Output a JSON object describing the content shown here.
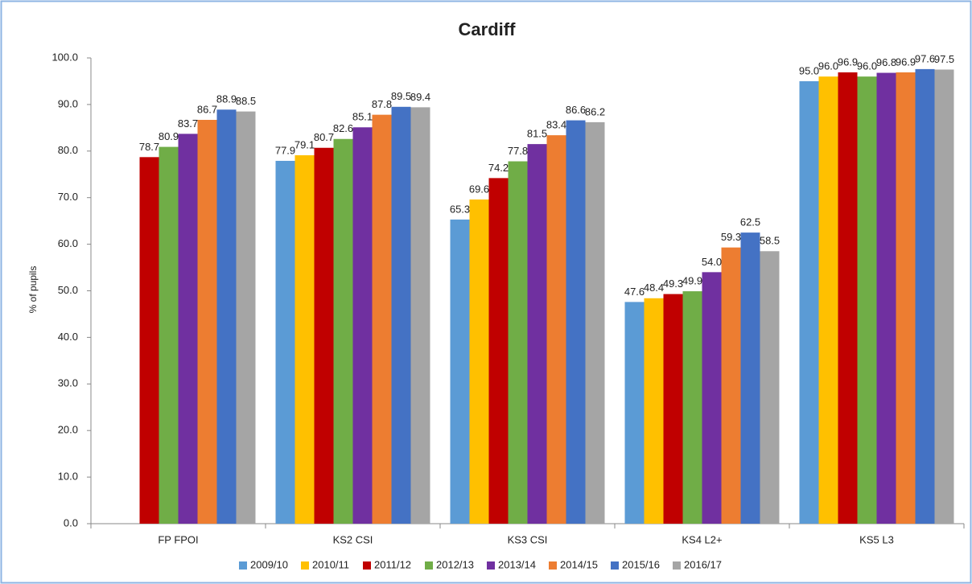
{
  "chart_data": {
    "type": "bar",
    "title": "Cardiff",
    "y_label": "% of pupils",
    "categories": [
      "FP FPOI",
      "KS2 CSI",
      "KS3 CSI",
      "KS4 L2+",
      "KS5 L3"
    ],
    "ylim": [
      0,
      100
    ],
    "yticks": [
      {
        "value": 0,
        "label": "0.0"
      },
      {
        "value": 10,
        "label": "10.0"
      },
      {
        "value": 20,
        "label": "20.0"
      },
      {
        "value": 30,
        "label": "30.0"
      },
      {
        "value": 40,
        "label": "40.0"
      },
      {
        "value": 50,
        "label": "50.0"
      },
      {
        "value": 60,
        "label": "60.0"
      },
      {
        "value": 70,
        "label": "70.0"
      },
      {
        "value": 80,
        "label": "80.0"
      },
      {
        "value": 90,
        "label": "90.0"
      },
      {
        "value": 100,
        "label": "100.0"
      }
    ],
    "grid": false,
    "legend": "bottom",
    "series": [
      {
        "name": "2009/10",
        "color": "#5b9bd5",
        "values": [
          null,
          77.9,
          65.3,
          47.6,
          95.0
        ],
        "value_labels": [
          null,
          "77.9",
          "65.3",
          "47.6",
          "95.0"
        ]
      },
      {
        "name": "2010/11",
        "color": "#ffc000",
        "values": [
          null,
          79.1,
          69.6,
          48.4,
          96.0
        ],
        "value_labels": [
          null,
          "79.1",
          "69.6",
          "48.4",
          "96.0"
        ]
      },
      {
        "name": "2011/12",
        "color": "#c00000",
        "values": [
          78.7,
          80.7,
          74.2,
          49.3,
          96.9
        ],
        "value_labels": [
          "78.7",
          "80.7",
          "74.2",
          "49.3",
          "96.9"
        ]
      },
      {
        "name": "2012/13",
        "color": "#70ad47",
        "values": [
          80.9,
          82.6,
          77.8,
          49.9,
          96.0
        ],
        "value_labels": [
          "80.9",
          "82.6",
          "77.8",
          "49.9",
          "96.0"
        ]
      },
      {
        "name": "2013/14",
        "color": "#7030a0",
        "values": [
          83.7,
          85.1,
          81.5,
          54.0,
          96.8
        ],
        "value_labels": [
          "83.7",
          "85.1",
          "81.5",
          "54.0",
          "96.8"
        ]
      },
      {
        "name": "2014/15",
        "color": "#ed7d31",
        "values": [
          86.7,
          87.8,
          83.4,
          59.3,
          96.9
        ],
        "value_labels": [
          "86.7",
          "87.8",
          "83.4",
          "59.3",
          "96.9"
        ]
      },
      {
        "name": "2015/16",
        "color": "#4472c4",
        "values": [
          88.9,
          89.5,
          86.6,
          62.5,
          97.6
        ],
        "value_labels": [
          "88.9",
          "89.5",
          "86.6",
          "62.5",
          "97.6"
        ]
      },
      {
        "name": "2016/17",
        "color": "#a5a5a5",
        "values": [
          88.5,
          89.4,
          86.2,
          58.5,
          97.5
        ],
        "value_labels": [
          "88.5",
          "89.4",
          "86.2",
          "58.5",
          "97.5"
        ]
      }
    ]
  }
}
